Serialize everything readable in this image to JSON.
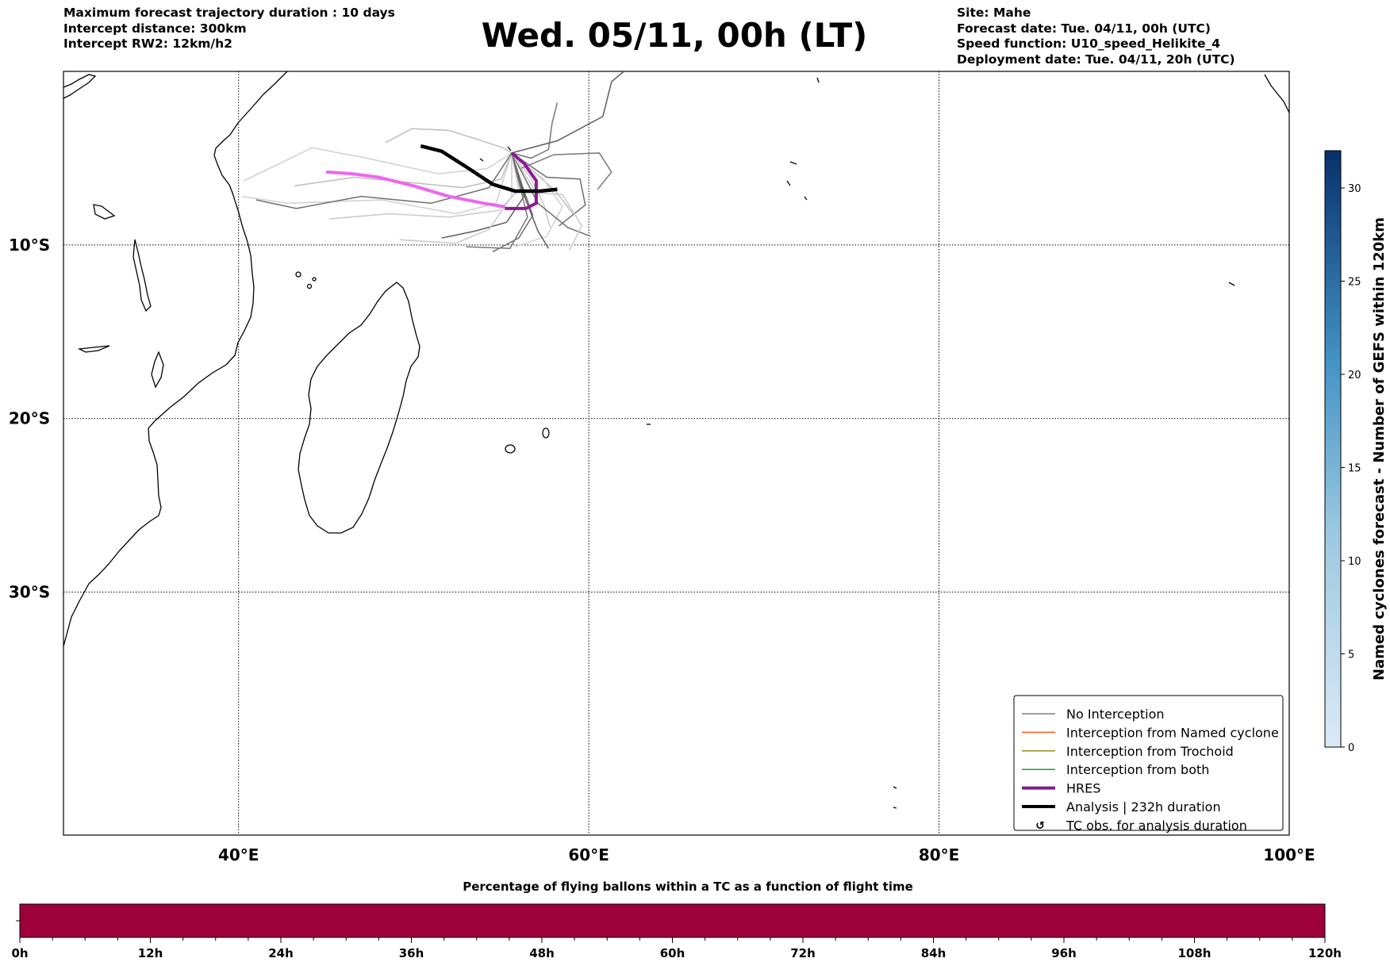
{
  "title": "Wed. 05/11, 00h (LT)",
  "info_left": [
    "Maximum forecast trajectory duration : 10 days",
    "Intercept distance: 300km",
    "Intercept RW2: 12km/h2"
  ],
  "info_right": [
    "Site: Mahe",
    "Forecast date: Tue. 04/11, 00h (UTC)",
    "Speed function: U10_speed_Helikite_4",
    "Deployment date: Tue. 04/11, 20h (UTC)"
  ],
  "map": {
    "lon_range": [
      30,
      100
    ],
    "lat_range": [
      -44,
      0
    ],
    "lon_ticks": [
      "40°E",
      "60°E",
      "80°E",
      "100°E"
    ],
    "lat_ticks": [
      "10°S",
      "20°S",
      "30°S"
    ],
    "gridlines": true
  },
  "legend": {
    "placement": "bottom-right",
    "items": [
      {
        "label": "No Interception",
        "color": "#7f7f7f",
        "style": "thin-line"
      },
      {
        "label": "Interception from Named cyclone",
        "color": "#ff5a1f",
        "style": "thin-line"
      },
      {
        "label": "Interception from Trochoid",
        "color": "#8c8c1a",
        "style": "thin-line"
      },
      {
        "label": "Interception from both",
        "color": "#1f9e1f",
        "style": "thin-line"
      },
      {
        "label": "HRES",
        "color": "#7f1c8c",
        "style": "thick-line"
      },
      {
        "label": "Analysis | 232h duration",
        "color": "#000000",
        "style": "thick-line"
      },
      {
        "label": "TC obs. for analysis duration",
        "color": "#000000",
        "style": "marker"
      }
    ]
  },
  "colorbar": {
    "label": "Named cyclones forecast - Number of GEFS within 120km",
    "ticks": [
      "0",
      "5",
      "10",
      "15",
      "20",
      "25",
      "30"
    ],
    "range": [
      0,
      32
    ],
    "colors": [
      "#dbe9f6",
      "#08306b"
    ]
  },
  "bottom_bar": {
    "label": "Percentage of flying ballons within a TC as a function of flight time",
    "ticks": [
      "0h",
      "12h",
      "24h",
      "36h",
      "48h",
      "60h",
      "72h",
      "84h",
      "96h",
      "108h",
      "120h"
    ],
    "color": "#9e003a"
  },
  "chart_data": {
    "type": "map",
    "site": "Mahe",
    "analysis_track": [
      [
        50.4,
        -4.3
      ],
      [
        51.6,
        -4.6
      ],
      [
        53.0,
        -5.5
      ],
      [
        54.5,
        -6.5
      ],
      [
        55.8,
        -6.9
      ],
      [
        57.2,
        -6.9
      ],
      [
        58.2,
        -6.8
      ]
    ],
    "hres_track": [
      [
        55.6,
        -4.7
      ],
      [
        56.3,
        -5.3
      ],
      [
        57.0,
        -6.3
      ],
      [
        57.0,
        -7.6
      ],
      [
        56.4,
        -7.9
      ],
      [
        55.2,
        -7.9
      ]
    ],
    "hres_late_track": [
      [
        45.0,
        -5.8
      ],
      [
        46.5,
        -5.9
      ],
      [
        48.0,
        -6.1
      ],
      [
        50.0,
        -6.6
      ],
      [
        52.0,
        -7.2
      ],
      [
        54.0,
        -7.6
      ],
      [
        55.2,
        -7.8
      ]
    ],
    "ensemble_tracks": [
      [
        [
          55.6,
          -4.7
        ],
        [
          56.6,
          -6.0
        ],
        [
          57.4,
          -7.6
        ],
        [
          57.8,
          -9.0
        ]
      ],
      [
        [
          55.6,
          -4.7
        ],
        [
          56.2,
          -6.6
        ],
        [
          56.8,
          -8.3
        ],
        [
          56.0,
          -9.6
        ],
        [
          54.5,
          -10.4
        ]
      ],
      [
        [
          55.6,
          -4.7
        ],
        [
          56.9,
          -5.8
        ],
        [
          58.1,
          -6.9
        ],
        [
          59.1,
          -8.2
        ]
      ],
      [
        [
          55.6,
          -4.7
        ],
        [
          56.3,
          -7.2
        ],
        [
          55.3,
          -8.7
        ],
        [
          53.5,
          -9.2
        ],
        [
          51.6,
          -9.6
        ]
      ],
      [
        [
          55.6,
          -4.7
        ],
        [
          57.4,
          -6.2
        ],
        [
          58.5,
          -7.8
        ],
        [
          57.6,
          -9.5
        ],
        [
          55.8,
          -10.1
        ]
      ],
      [
        [
          55.6,
          -4.7
        ],
        [
          56.7,
          -5.0
        ],
        [
          57.7,
          -4.5
        ],
        [
          57.9,
          -3.0
        ],
        [
          58.2,
          -1.8
        ]
      ],
      [
        [
          55.6,
          -4.7
        ],
        [
          56.0,
          -6.8
        ],
        [
          54.9,
          -8.0
        ],
        [
          52.0,
          -8.4
        ],
        [
          48.6,
          -8.2
        ],
        [
          45.2,
          -8.5
        ]
      ],
      [
        [
          55.6,
          -4.7
        ],
        [
          57.6,
          -6.1
        ],
        [
          59.5,
          -6.2
        ],
        [
          59.8,
          -7.7
        ],
        [
          58.3,
          -8.9
        ]
      ],
      [
        [
          55.6,
          -4.7
        ],
        [
          55.0,
          -6.2
        ],
        [
          52.8,
          -6.7
        ],
        [
          49.8,
          -6.4
        ],
        [
          46.6,
          -6.1
        ],
        [
          43.2,
          -6.6
        ]
      ],
      [
        [
          55.6,
          -4.7
        ],
        [
          56.4,
          -7.4
        ],
        [
          57.1,
          -9.2
        ],
        [
          57.7,
          -10.2
        ]
      ],
      [
        [
          55.6,
          -4.7
        ],
        [
          54.2,
          -5.6
        ],
        [
          51.4,
          -5.9
        ],
        [
          47.3,
          -5.0
        ],
        [
          44.2,
          -4.4
        ],
        [
          40.3,
          -6.3
        ]
      ],
      [
        [
          55.6,
          -4.7
        ],
        [
          56.1,
          -5.6
        ],
        [
          58.0,
          -4.8
        ],
        [
          60.6,
          -4.7
        ],
        [
          61.3,
          -5.8
        ],
        [
          60.5,
          -6.8
        ]
      ],
      [
        [
          55.6,
          -4.7
        ],
        [
          55.6,
          -7.2
        ],
        [
          54.3,
          -9.1
        ],
        [
          52.4,
          -9.9
        ],
        [
          49.2,
          -9.7
        ]
      ],
      [
        [
          55.6,
          -4.7
        ],
        [
          57.1,
          -7.6
        ],
        [
          58.8,
          -9.0
        ],
        [
          60.1,
          -9.5
        ]
      ],
      [
        [
          55.6,
          -4.7
        ],
        [
          55.1,
          -4.4
        ],
        [
          53.6,
          -3.9
        ],
        [
          52.0,
          -3.4
        ],
        [
          49.9,
          -3.3
        ],
        [
          48.4,
          -4.1
        ]
      ],
      [
        [
          55.6,
          -4.7
        ],
        [
          58.2,
          -4.0
        ],
        [
          60.8,
          -2.6
        ],
        [
          61.3,
          -0.6
        ],
        [
          62.0,
          0.0
        ]
      ],
      [
        [
          55.6,
          -4.7
        ],
        [
          54.7,
          -7.6
        ],
        [
          52.4,
          -8.2
        ],
        [
          48.2,
          -7.4
        ],
        [
          42.8,
          -7.6
        ],
        [
          40.2,
          -7.2
        ]
      ],
      [
        [
          55.6,
          -4.7
        ],
        [
          56.5,
          -8.4
        ],
        [
          55.5,
          -10.2
        ],
        [
          53.0,
          -10.1
        ]
      ],
      [
        [
          55.6,
          -4.7
        ],
        [
          57.0,
          -7.0
        ],
        [
          58.5,
          -7.1
        ],
        [
          59.6,
          -8.9
        ],
        [
          58.9,
          -10.3
        ]
      ],
      [
        [
          55.6,
          -4.7
        ],
        [
          54.3,
          -6.7
        ],
        [
          51.0,
          -7.6
        ],
        [
          47.0,
          -7.2
        ],
        [
          43.3,
          -7.9
        ],
        [
          41.0,
          -7.4
        ]
      ]
    ]
  }
}
